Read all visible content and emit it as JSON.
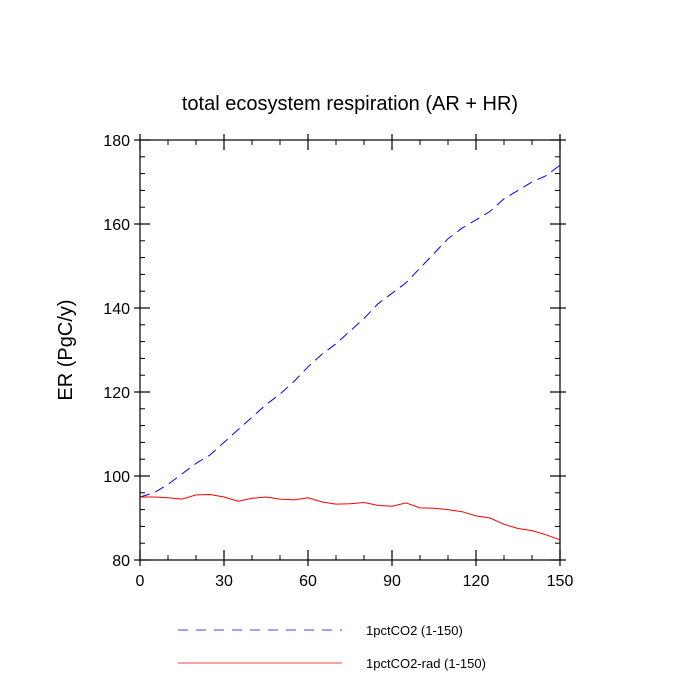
{
  "chart_data": {
    "type": "line",
    "title": "total ecosystem respiration (AR + HR)",
    "xlabel": "",
    "ylabel": "ER  (PgC/y)",
    "xlim": [
      0,
      150
    ],
    "ylim": [
      80,
      180
    ],
    "xticks": [
      0,
      30,
      60,
      90,
      120,
      150
    ],
    "yticks": [
      80,
      100,
      120,
      140,
      160,
      180
    ],
    "x_minor_step": 10,
    "y_minor_step": 4,
    "grid": false,
    "legend_placement": "bottom",
    "series": [
      {
        "name": "1pctCO2 (1-150)",
        "color": "#0000ff",
        "dash": "dashed",
        "x": [
          0,
          5,
          10,
          15,
          20,
          25,
          30,
          35,
          40,
          45,
          50,
          55,
          60,
          65,
          70,
          75,
          80,
          85,
          90,
          95,
          100,
          105,
          110,
          115,
          120,
          125,
          130,
          135,
          140,
          145,
          150
        ],
        "y": [
          95,
          96,
          98,
          100.5,
          103,
          105,
          108,
          111,
          114,
          117,
          119.5,
          122.5,
          126,
          129,
          131.5,
          134.5,
          137.5,
          141,
          143.5,
          146,
          149.5,
          153,
          156.5,
          159,
          161,
          163,
          166,
          168,
          170,
          171.5,
          174
        ]
      },
      {
        "name": "1pctCO2-rad (1-150)",
        "color": "#ff0000",
        "dash": "solid",
        "x": [
          0,
          5,
          10,
          15,
          20,
          25,
          30,
          35,
          40,
          45,
          50,
          55,
          60,
          65,
          70,
          75,
          80,
          85,
          90,
          95,
          100,
          105,
          110,
          115,
          120,
          125,
          130,
          135,
          140,
          145,
          150
        ],
        "y": [
          95,
          95,
          94.8,
          94.5,
          95.5,
          95.6,
          95,
          94,
          94.7,
          95,
          94.5,
          94.3,
          94.8,
          93.8,
          93.3,
          93.4,
          93.7,
          93,
          92.8,
          93.6,
          92.4,
          92.3,
          92,
          91.5,
          90.5,
          90,
          88.5,
          87.5,
          87,
          86,
          84.8
        ]
      }
    ]
  }
}
